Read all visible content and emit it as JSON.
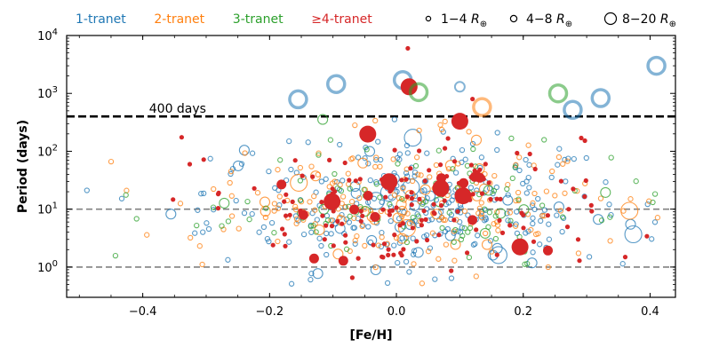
{
  "chart_data": {
    "type": "scatter",
    "title": "",
    "xlabel": "[Fe/H]",
    "ylabel": "Period (days)",
    "xlim": [
      -0.52,
      0.44
    ],
    "ylim": [
      0.3,
      10000
    ],
    "yscale": "log",
    "x_ticks": [
      -0.4,
      -0.2,
      0.0,
      0.2,
      0.4
    ],
    "x_tick_labels": [
      "−0.4",
      "−0.2",
      "0.0",
      "0.2",
      "0.4"
    ],
    "y_ticks": [
      1,
      10,
      100,
      1000,
      10000
    ],
    "y_tick_exponents": [
      "0",
      "1",
      "2",
      "3",
      "4"
    ],
    "y_tick_base": "10",
    "reference_lines": [
      {
        "y": 400,
        "style": "black-dashed-thick",
        "label": "400 days"
      },
      {
        "y": 10,
        "style": "gray-dashed",
        "label": ""
      },
      {
        "y": 1,
        "style": "gray-dashed",
        "label": ""
      }
    ],
    "legend_series": [
      {
        "name": "1-tranet",
        "color": "#1f77b4"
      },
      {
        "name": "2-tranet",
        "color": "#ff7f0e"
      },
      {
        "name": "3-tranet",
        "color": "#2ca02c"
      },
      {
        "name": "≥4-tranet",
        "color": "#d62728"
      }
    ],
    "legend_sizes": [
      {
        "label_prefix": "1−4",
        "radius": "small"
      },
      {
        "label_prefix": "4−8",
        "radius": "medium"
      },
      {
        "label_prefix": "8−20",
        "radius": "large"
      }
    ],
    "radius_unit_symbol": "R",
    "radius_unit_subscript": "⊕",
    "highlighted_long_period": [
      {
        "feh": -0.155,
        "period": 790,
        "series": "1-tranet",
        "size": "large"
      },
      {
        "feh": -0.095,
        "period": 1450,
        "series": "1-tranet",
        "size": "large"
      },
      {
        "feh": 0.01,
        "period": 1700,
        "series": "1-tranet",
        "size": "large"
      },
      {
        "feh": 0.02,
        "period": 1300,
        "series": "≥4-tranet",
        "size": "large"
      },
      {
        "feh": 0.035,
        "period": 1050,
        "series": "3-tranet",
        "size": "large"
      },
      {
        "feh": 0.018,
        "period": 6000,
        "series": "≥4-tranet",
        "size": "small"
      },
      {
        "feh": 0.1,
        "period": 1300,
        "series": "1-tranet",
        "size": "medium"
      },
      {
        "feh": 0.12,
        "period": 800,
        "series": "≥4-tranet",
        "size": "small"
      },
      {
        "feh": 0.135,
        "period": 580,
        "series": "2-tranet",
        "size": "large"
      },
      {
        "feh": 0.255,
        "period": 1000,
        "series": "3-tranet",
        "size": "large"
      },
      {
        "feh": 0.278,
        "period": 520,
        "series": "1-tranet",
        "size": "large"
      },
      {
        "feh": 0.322,
        "period": 830,
        "series": "1-tranet",
        "size": "large"
      },
      {
        "feh": 0.41,
        "period": 3000,
        "series": "1-tranet",
        "size": "large"
      },
      {
        "feh": 0.1,
        "period": 330,
        "series": "≥4-tranet",
        "size": "large"
      },
      {
        "feh": 0.105,
        "period": 17,
        "series": "≥4-tranet",
        "size": "large"
      },
      {
        "feh": 0.07,
        "period": 23,
        "series": "≥4-tranet",
        "size": "large"
      }
    ],
    "bulk_point_counts": {
      "1-tranet": 300,
      "2-tranet": 220,
      "3-tranet": 110,
      "≥4-tranet": 170
    }
  }
}
